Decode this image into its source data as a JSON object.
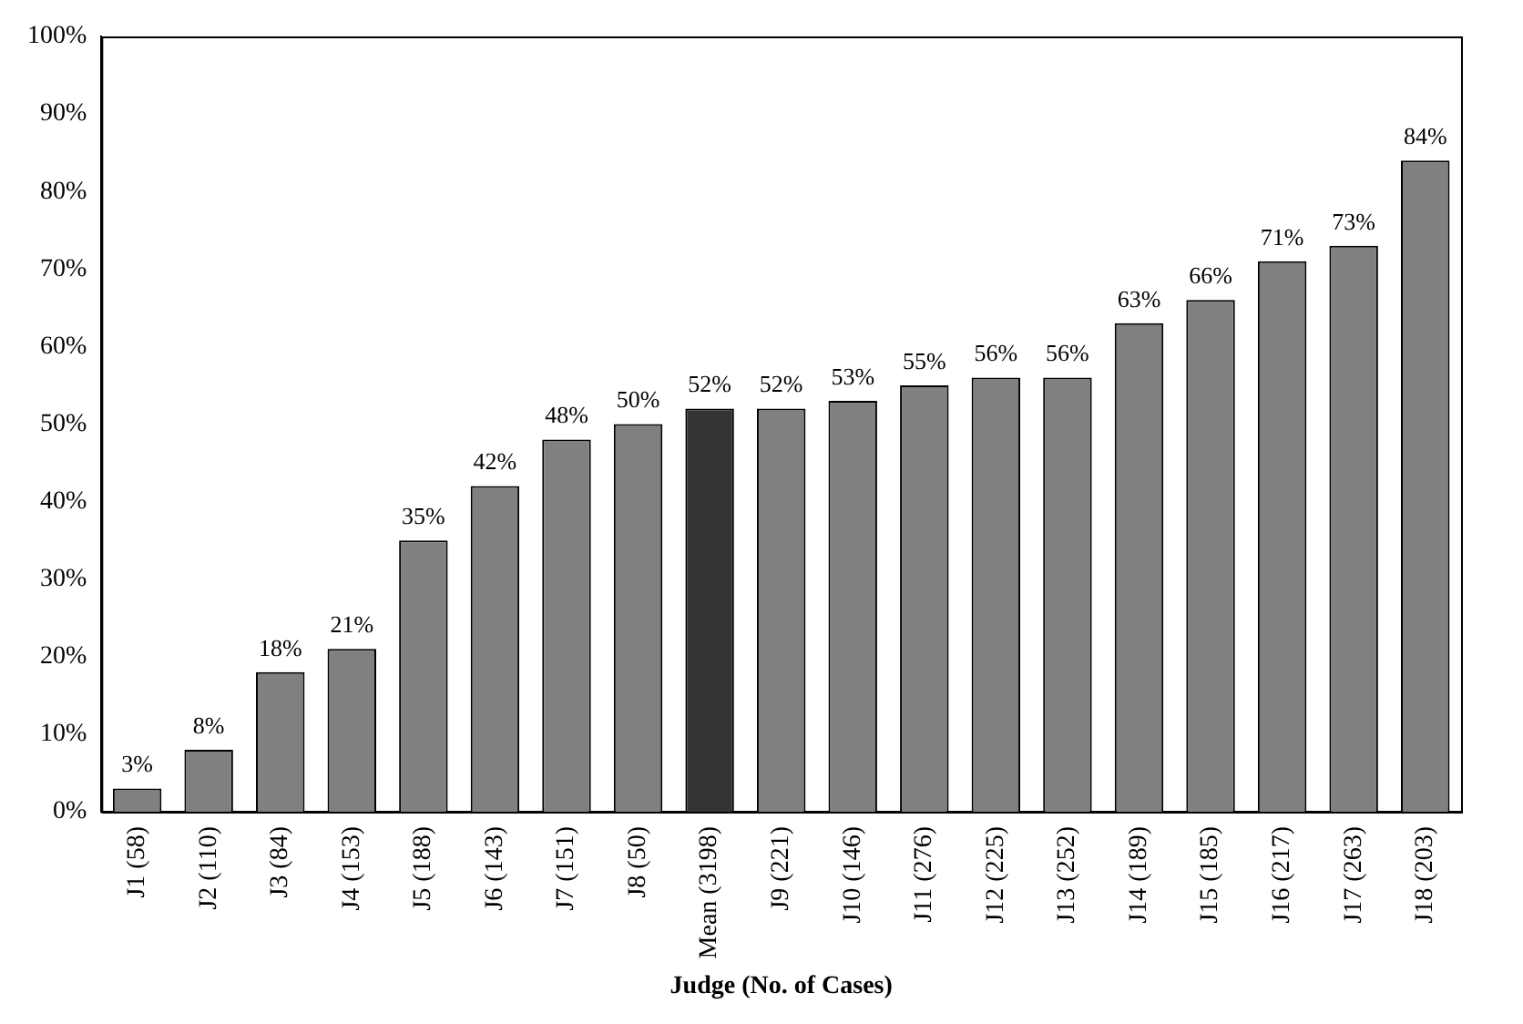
{
  "chart_data": {
    "type": "bar",
    "xlabel": "Judge (No. of Cases)",
    "categories": [
      "J1 (58)",
      "J2 (110)",
      "J3 (84)",
      "J4 (153)",
      "J5 (188)",
      "J6 (143)",
      "J7 (151)",
      "J8 (50)",
      "Mean (3198)",
      "J9 (221)",
      "J10 (146)",
      "J11 (276)",
      "J12 (225)",
      "J13 (252)",
      "J14 (189)",
      "J15 (185)",
      "J16 (217)",
      "J17 (263)",
      "J18 (203)"
    ],
    "values": [
      3,
      8,
      18,
      21,
      35,
      42,
      48,
      50,
      52,
      52,
      53,
      55,
      56,
      56,
      63,
      66,
      71,
      73,
      84
    ],
    "colors": [
      "#808080",
      "#808080",
      "#808080",
      "#808080",
      "#808080",
      "#808080",
      "#808080",
      "#808080",
      "#333333",
      "#808080",
      "#808080",
      "#808080",
      "#808080",
      "#808080",
      "#808080",
      "#808080",
      "#808080",
      "#808080",
      "#808080"
    ],
    "value_labels": [
      "3%",
      "8%",
      "18%",
      "21%",
      "35%",
      "42%",
      "48%",
      "50%",
      "52%",
      "52%",
      "53%",
      "55%",
      "56%",
      "56%",
      "63%",
      "66%",
      "71%",
      "73%",
      "84%"
    ],
    "ylim": [
      0,
      100
    ],
    "yticks": [
      {
        "value": 0,
        "label": "0%"
      },
      {
        "value": 10,
        "label": "10%"
      },
      {
        "value": 20,
        "label": "20%"
      },
      {
        "value": 30,
        "label": "30%"
      },
      {
        "value": 40,
        "label": "40%"
      },
      {
        "value": 50,
        "label": "50%"
      },
      {
        "value": 60,
        "label": "60%"
      },
      {
        "value": 70,
        "label": "70%"
      },
      {
        "value": 80,
        "label": "80%"
      },
      {
        "value": 90,
        "label": "90%"
      },
      {
        "value": 100,
        "label": "100%"
      }
    ],
    "grid": false,
    "legend": false
  }
}
